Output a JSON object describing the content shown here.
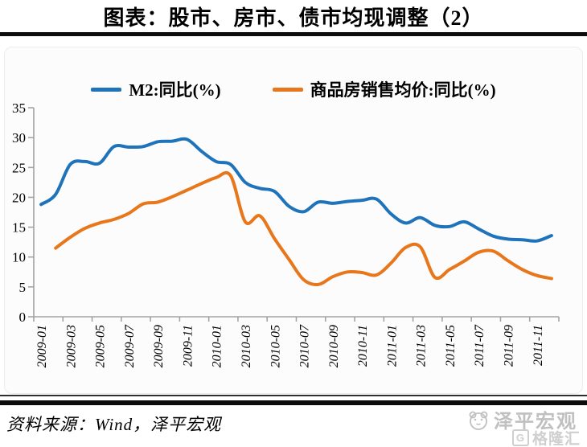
{
  "page": {
    "source_note": "资料来源：Wind，泽平宏观",
    "watermark": {
      "brand1": "泽平宏观",
      "brand2": "格隆汇"
    }
  },
  "chart_data": {
    "type": "line",
    "title": "图表：股市、房市、债市均现调整（2）",
    "x": [
      "2009-01",
      "2009-02",
      "2009-03",
      "2009-04",
      "2009-05",
      "2009-06",
      "2009-07",
      "2009-08",
      "2009-09",
      "2009-10",
      "2009-11",
      "2009-12",
      "2010-01",
      "2010-02",
      "2010-03",
      "2010-04",
      "2010-05",
      "2010-06",
      "2010-07",
      "2010-08",
      "2010-09",
      "2010-10",
      "2010-11",
      "2010-12",
      "2011-01",
      "2011-02",
      "2011-03",
      "2011-04",
      "2011-05",
      "2011-06",
      "2011-07",
      "2011-08",
      "2011-09",
      "2011-10",
      "2011-11",
      "2011-12"
    ],
    "x_tick_labels": [
      "2009-01",
      "2009-03",
      "2009-05",
      "2009-07",
      "2009-09",
      "2009-11",
      "2010-01",
      "2010-03",
      "2010-05",
      "2010-07",
      "2010-09",
      "2010-11",
      "2011-01",
      "2011-03",
      "2011-05",
      "2011-07",
      "2011-09",
      "2011-11"
    ],
    "ylim": [
      0,
      35
    ],
    "yticks": [
      0,
      5,
      10,
      15,
      20,
      25,
      30,
      35
    ],
    "grid": false,
    "legend_position": "top",
    "smooth": true,
    "axis_color": "#a3a3a3",
    "series": [
      {
        "name": "M2:同比(%)",
        "color": "#1e73bb",
        "values": [
          18.8,
          20.5,
          25.5,
          26.0,
          25.7,
          28.5,
          28.4,
          28.5,
          29.3,
          29.4,
          29.7,
          27.7,
          26.0,
          25.5,
          22.5,
          21.5,
          21.0,
          18.5,
          17.6,
          19.2,
          19.0,
          19.3,
          19.5,
          19.7,
          17.2,
          15.7,
          16.6,
          15.3,
          15.1,
          15.9,
          14.7,
          13.5,
          13.0,
          12.9,
          12.7,
          13.6
        ]
      },
      {
        "name": "商品房销售均价:同比(%)",
        "color": "#e8761a",
        "values": [
          null,
          11.5,
          13.3,
          14.8,
          15.7,
          16.3,
          17.3,
          18.9,
          19.2,
          20.1,
          21.2,
          22.3,
          23.3,
          23.6,
          15.9,
          16.9,
          13.1,
          9.6,
          6.2,
          5.4,
          6.7,
          7.5,
          7.4,
          7.0,
          9.0,
          11.6,
          11.7,
          6.6,
          7.9,
          9.3,
          10.8,
          11.0,
          9.4,
          7.9,
          6.9,
          6.4
        ]
      }
    ]
  }
}
